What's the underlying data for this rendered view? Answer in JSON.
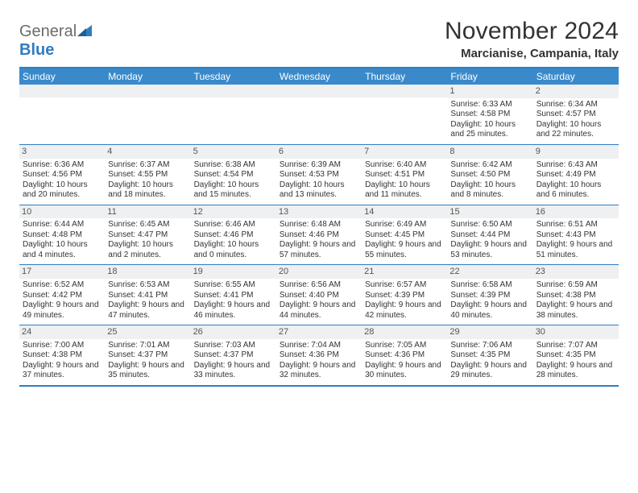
{
  "brand": {
    "name_part1": "General",
    "name_part2": "Blue",
    "text_color": "#6b6b6b",
    "accent_color": "#2f7dc0"
  },
  "title": "November 2024",
  "location": "Marcianise, Campania, Italy",
  "colors": {
    "header_bg": "#3a8acb",
    "header_text": "#ffffff",
    "border": "#2f7dc0",
    "daynum_bg": "#eef0f2",
    "body_text": "#333333"
  },
  "day_names": [
    "Sunday",
    "Monday",
    "Tuesday",
    "Wednesday",
    "Thursday",
    "Friday",
    "Saturday"
  ],
  "weeks": [
    [
      {
        "day": "",
        "sunrise": "",
        "sunset": "",
        "daylight": ""
      },
      {
        "day": "",
        "sunrise": "",
        "sunset": "",
        "daylight": ""
      },
      {
        "day": "",
        "sunrise": "",
        "sunset": "",
        "daylight": ""
      },
      {
        "day": "",
        "sunrise": "",
        "sunset": "",
        "daylight": ""
      },
      {
        "day": "",
        "sunrise": "",
        "sunset": "",
        "daylight": ""
      },
      {
        "day": "1",
        "sunrise": "Sunrise: 6:33 AM",
        "sunset": "Sunset: 4:58 PM",
        "daylight": "Daylight: 10 hours and 25 minutes."
      },
      {
        "day": "2",
        "sunrise": "Sunrise: 6:34 AM",
        "sunset": "Sunset: 4:57 PM",
        "daylight": "Daylight: 10 hours and 22 minutes."
      }
    ],
    [
      {
        "day": "3",
        "sunrise": "Sunrise: 6:36 AM",
        "sunset": "Sunset: 4:56 PM",
        "daylight": "Daylight: 10 hours and 20 minutes."
      },
      {
        "day": "4",
        "sunrise": "Sunrise: 6:37 AM",
        "sunset": "Sunset: 4:55 PM",
        "daylight": "Daylight: 10 hours and 18 minutes."
      },
      {
        "day": "5",
        "sunrise": "Sunrise: 6:38 AM",
        "sunset": "Sunset: 4:54 PM",
        "daylight": "Daylight: 10 hours and 15 minutes."
      },
      {
        "day": "6",
        "sunrise": "Sunrise: 6:39 AM",
        "sunset": "Sunset: 4:53 PM",
        "daylight": "Daylight: 10 hours and 13 minutes."
      },
      {
        "day": "7",
        "sunrise": "Sunrise: 6:40 AM",
        "sunset": "Sunset: 4:51 PM",
        "daylight": "Daylight: 10 hours and 11 minutes."
      },
      {
        "day": "8",
        "sunrise": "Sunrise: 6:42 AM",
        "sunset": "Sunset: 4:50 PM",
        "daylight": "Daylight: 10 hours and 8 minutes."
      },
      {
        "day": "9",
        "sunrise": "Sunrise: 6:43 AM",
        "sunset": "Sunset: 4:49 PM",
        "daylight": "Daylight: 10 hours and 6 minutes."
      }
    ],
    [
      {
        "day": "10",
        "sunrise": "Sunrise: 6:44 AM",
        "sunset": "Sunset: 4:48 PM",
        "daylight": "Daylight: 10 hours and 4 minutes."
      },
      {
        "day": "11",
        "sunrise": "Sunrise: 6:45 AM",
        "sunset": "Sunset: 4:47 PM",
        "daylight": "Daylight: 10 hours and 2 minutes."
      },
      {
        "day": "12",
        "sunrise": "Sunrise: 6:46 AM",
        "sunset": "Sunset: 4:46 PM",
        "daylight": "Daylight: 10 hours and 0 minutes."
      },
      {
        "day": "13",
        "sunrise": "Sunrise: 6:48 AM",
        "sunset": "Sunset: 4:46 PM",
        "daylight": "Daylight: 9 hours and 57 minutes."
      },
      {
        "day": "14",
        "sunrise": "Sunrise: 6:49 AM",
        "sunset": "Sunset: 4:45 PM",
        "daylight": "Daylight: 9 hours and 55 minutes."
      },
      {
        "day": "15",
        "sunrise": "Sunrise: 6:50 AM",
        "sunset": "Sunset: 4:44 PM",
        "daylight": "Daylight: 9 hours and 53 minutes."
      },
      {
        "day": "16",
        "sunrise": "Sunrise: 6:51 AM",
        "sunset": "Sunset: 4:43 PM",
        "daylight": "Daylight: 9 hours and 51 minutes."
      }
    ],
    [
      {
        "day": "17",
        "sunrise": "Sunrise: 6:52 AM",
        "sunset": "Sunset: 4:42 PM",
        "daylight": "Daylight: 9 hours and 49 minutes."
      },
      {
        "day": "18",
        "sunrise": "Sunrise: 6:53 AM",
        "sunset": "Sunset: 4:41 PM",
        "daylight": "Daylight: 9 hours and 47 minutes."
      },
      {
        "day": "19",
        "sunrise": "Sunrise: 6:55 AM",
        "sunset": "Sunset: 4:41 PM",
        "daylight": "Daylight: 9 hours and 46 minutes."
      },
      {
        "day": "20",
        "sunrise": "Sunrise: 6:56 AM",
        "sunset": "Sunset: 4:40 PM",
        "daylight": "Daylight: 9 hours and 44 minutes."
      },
      {
        "day": "21",
        "sunrise": "Sunrise: 6:57 AM",
        "sunset": "Sunset: 4:39 PM",
        "daylight": "Daylight: 9 hours and 42 minutes."
      },
      {
        "day": "22",
        "sunrise": "Sunrise: 6:58 AM",
        "sunset": "Sunset: 4:39 PM",
        "daylight": "Daylight: 9 hours and 40 minutes."
      },
      {
        "day": "23",
        "sunrise": "Sunrise: 6:59 AM",
        "sunset": "Sunset: 4:38 PM",
        "daylight": "Daylight: 9 hours and 38 minutes."
      }
    ],
    [
      {
        "day": "24",
        "sunrise": "Sunrise: 7:00 AM",
        "sunset": "Sunset: 4:38 PM",
        "daylight": "Daylight: 9 hours and 37 minutes."
      },
      {
        "day": "25",
        "sunrise": "Sunrise: 7:01 AM",
        "sunset": "Sunset: 4:37 PM",
        "daylight": "Daylight: 9 hours and 35 minutes."
      },
      {
        "day": "26",
        "sunrise": "Sunrise: 7:03 AM",
        "sunset": "Sunset: 4:37 PM",
        "daylight": "Daylight: 9 hours and 33 minutes."
      },
      {
        "day": "27",
        "sunrise": "Sunrise: 7:04 AM",
        "sunset": "Sunset: 4:36 PM",
        "daylight": "Daylight: 9 hours and 32 minutes."
      },
      {
        "day": "28",
        "sunrise": "Sunrise: 7:05 AM",
        "sunset": "Sunset: 4:36 PM",
        "daylight": "Daylight: 9 hours and 30 minutes."
      },
      {
        "day": "29",
        "sunrise": "Sunrise: 7:06 AM",
        "sunset": "Sunset: 4:35 PM",
        "daylight": "Daylight: 9 hours and 29 minutes."
      },
      {
        "day": "30",
        "sunrise": "Sunrise: 7:07 AM",
        "sunset": "Sunset: 4:35 PM",
        "daylight": "Daylight: 9 hours and 28 minutes."
      }
    ]
  ]
}
